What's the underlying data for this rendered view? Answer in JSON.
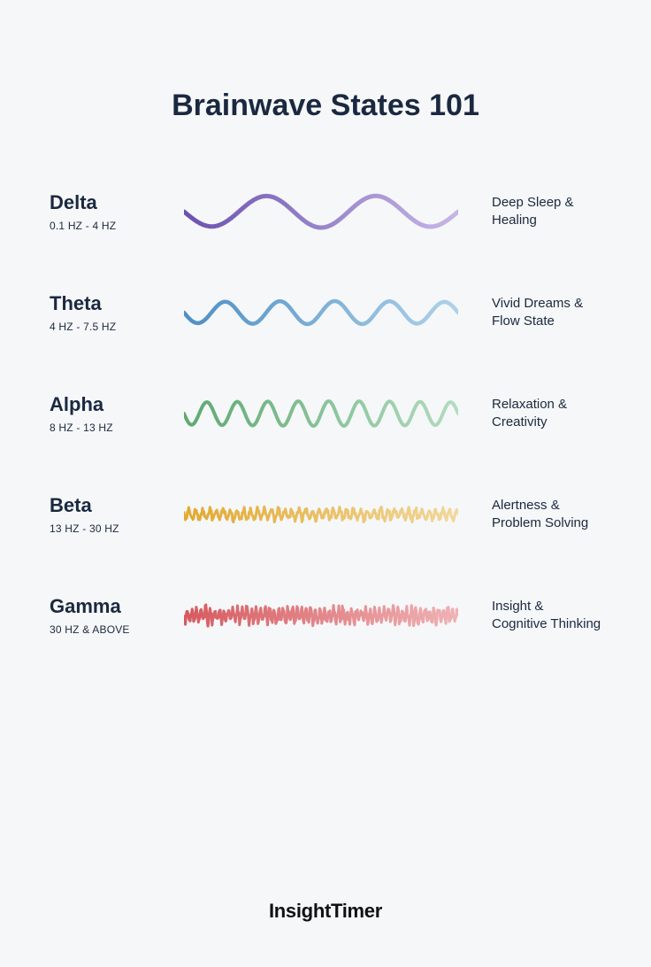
{
  "title": "Brainwave States 101",
  "footer_brand": "InsightTimer",
  "background_color": "#f6f7f8",
  "text_color": "#1a2940",
  "title_fontsize": 34,
  "wave_name_fontsize": 22,
  "wave_freq_fontsize": 12,
  "description_fontsize": 15,
  "wave_svg_width": 310,
  "wave_svg_height": 60,
  "waves": [
    {
      "name": "Delta",
      "freq": "0.1 HZ - 4 HZ",
      "description": "Deep Sleep & Healing",
      "color_start": "#6a51b0",
      "color_end": "#c6b7e6",
      "stroke_width": 5,
      "cycles": 2.5,
      "amplitude": 18,
      "irregular": false
    },
    {
      "name": "Theta",
      "freq": "4 HZ - 7.5 HZ",
      "description": "Vivid Dreams & Flow State",
      "color_start": "#4d8fc6",
      "color_end": "#aed2ea",
      "stroke_width": 4.5,
      "cycles": 5,
      "amplitude": 13,
      "irregular": false
    },
    {
      "name": "Alpha",
      "freq": "8 HZ - 13 HZ",
      "description": "Relaxation & Creativity",
      "color_start": "#5da973",
      "color_end": "#b3dcbf",
      "stroke_width": 4,
      "cycles": 9,
      "amplitude": 14,
      "irregular": false
    },
    {
      "name": "Beta",
      "freq": "13 HZ - 30 HZ",
      "description": "Alertness & Problem Solving",
      "color_start": "#e2a931",
      "color_end": "#f2d79b",
      "stroke_width": 3,
      "cycles": 40,
      "amplitude": 8,
      "irregular": true
    },
    {
      "name": "Gamma",
      "freq": "30 HZ & ABOVE",
      "description": "Insight & Cognitive Thinking",
      "color_start": "#d65a5f",
      "color_end": "#efb2b5",
      "stroke_width": 3,
      "cycles": 60,
      "amplitude": 11,
      "irregular": true
    }
  ]
}
